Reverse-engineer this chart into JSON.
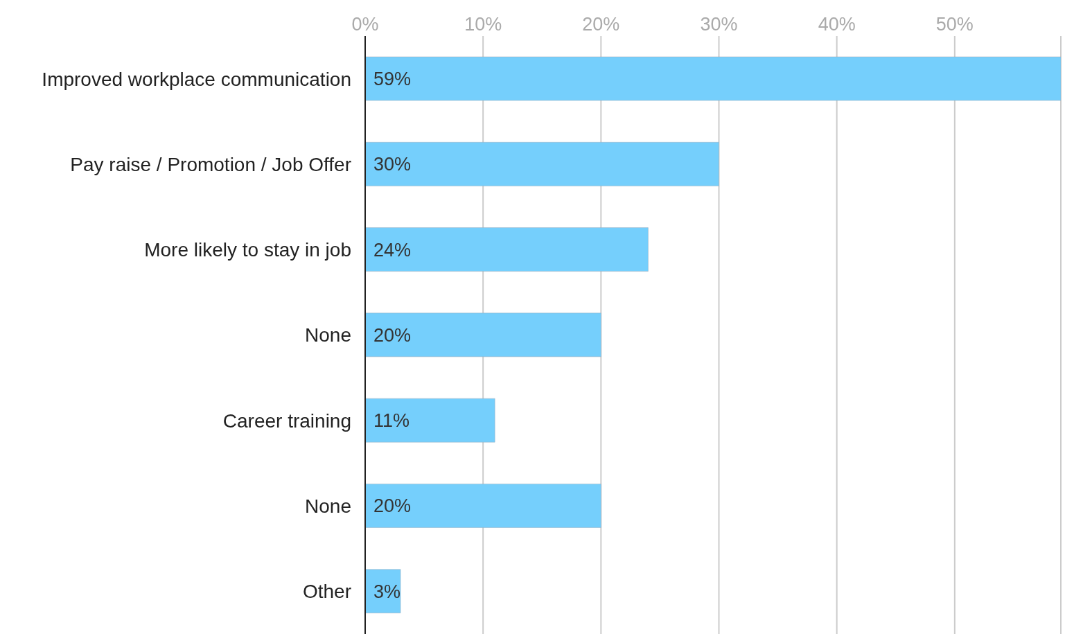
{
  "chart_data": {
    "type": "bar",
    "orientation": "horizontal",
    "categories": [
      "Improved workplace communication",
      "Pay raise / Promotion / Job Offer",
      "More likely to stay in job",
      "None",
      "Career training",
      "None",
      "Other"
    ],
    "values": [
      59,
      30,
      24,
      20,
      11,
      20,
      3
    ],
    "value_labels": [
      "59%",
      "30%",
      "24%",
      "20%",
      "11%",
      "20%",
      "3%"
    ],
    "color": "#75cffc",
    "xlim": [
      0,
      59
    ],
    "xticks": [
      {
        "value": 0,
        "label": "0%"
      },
      {
        "value": 10,
        "label": "10%"
      },
      {
        "value": 20,
        "label": "20%"
      },
      {
        "value": 30,
        "label": "30%"
      },
      {
        "value": 40,
        "label": "40%"
      },
      {
        "value": 50,
        "label": "50%"
      }
    ],
    "grid": "x",
    "legend": false
  }
}
